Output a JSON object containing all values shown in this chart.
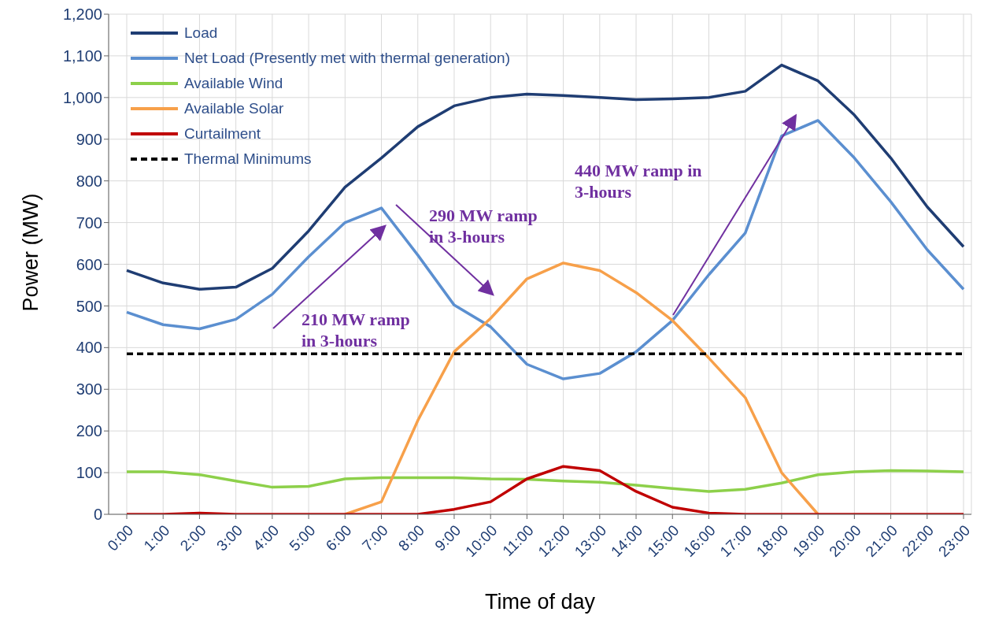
{
  "chart_data": {
    "type": "line",
    "xlabel": "Time of day",
    "ylabel": "Power (MW)",
    "categories": [
      "0:00",
      "1:00",
      "2:00",
      "3:00",
      "4:00",
      "5:00",
      "6:00",
      "7:00",
      "8:00",
      "9:00",
      "10:00",
      "11:00",
      "12:00",
      "13:00",
      "14:00",
      "15:00",
      "16:00",
      "17:00",
      "18:00",
      "19:00",
      "20:00",
      "21:00",
      "22:00",
      "23:00"
    ],
    "series": [
      {
        "name": "Load",
        "color": "#1f3d73",
        "values": [
          585,
          555,
          540,
          545,
          590,
          680,
          785,
          855,
          930,
          980,
          1000,
          1008,
          1005,
          1000,
          995,
          997,
          1000,
          1015,
          1078,
          1040,
          958,
          855,
          738,
          642
        ]
      },
      {
        "name": "Net Load (Presently met with thermal generation)",
        "color": "#5b8fd0",
        "values": [
          485,
          455,
          445,
          468,
          528,
          618,
          700,
          735,
          622,
          502,
          450,
          360,
          325,
          338,
          390,
          465,
          575,
          675,
          908,
          945,
          855,
          750,
          635,
          540
        ]
      },
      {
        "name": "Available Wind",
        "color": "#8dd04a",
        "values": [
          102,
          102,
          95,
          80,
          65,
          67,
          85,
          88,
          88,
          88,
          85,
          84,
          80,
          77,
          70,
          62,
          55,
          60,
          75,
          95,
          102,
          105,
          104,
          102
        ]
      },
      {
        "name": "Available Solar",
        "color": "#f7a04a",
        "values": [
          null,
          null,
          null,
          null,
          null,
          null,
          0,
          30,
          225,
          390,
          470,
          565,
          603,
          585,
          532,
          465,
          375,
          280,
          100,
          0,
          null,
          null,
          null,
          null
        ]
      },
      {
        "name": "Curtailment",
        "color": "#c00000",
        "values": [
          0,
          0,
          3,
          0,
          0,
          0,
          0,
          0,
          0,
          12,
          30,
          85,
          115,
          105,
          55,
          17,
          3,
          0,
          0,
          0,
          0,
          0,
          0,
          0
        ]
      },
      {
        "name": "Thermal Minimums",
        "color": "#000000",
        "line_style": "dashed",
        "values": [
          385,
          385,
          385,
          385,
          385,
          385,
          385,
          385,
          385,
          385,
          385,
          385,
          385,
          385,
          385,
          385,
          385,
          385,
          385,
          385,
          385,
          385,
          385,
          385
        ]
      }
    ],
    "ylim": [
      0,
      1200
    ],
    "yticks": [
      0,
      100,
      200,
      300,
      400,
      500,
      600,
      700,
      800,
      900,
      {
        "value": 1000,
        "label": "1,000"
      },
      {
        "value": 1100,
        "label": "1,100"
      },
      {
        "value": 1200,
        "label": "1,200"
      }
    ],
    "grid": true,
    "legend": "top left",
    "marker": "none",
    "line_style": "solid",
    "annotations": [
      "210 MW ramp in 3-hours",
      "290 MW ramp in 3-hours",
      "440 MW ramp in 3-hours"
    ]
  }
}
